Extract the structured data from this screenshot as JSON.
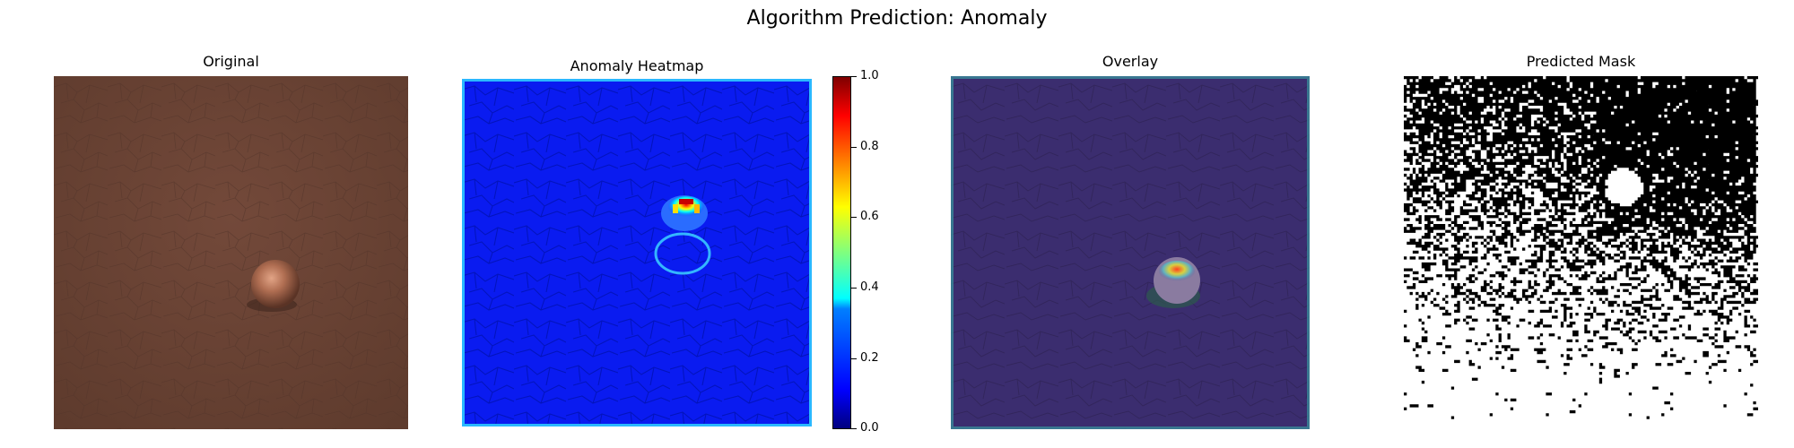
{
  "figure": {
    "title": "Algorithm Prediction: Anomaly"
  },
  "panels": {
    "original": {
      "title": "Original"
    },
    "heatmap": {
      "title": "Anomaly Heatmap"
    },
    "overlay": {
      "title": "Overlay"
    },
    "mask": {
      "title": "Predicted Mask"
    }
  },
  "colorbar": {
    "ticks": [
      "1.0",
      "0.8",
      "0.6",
      "0.4",
      "0.2",
      "0.0"
    ],
    "colormap": "jet",
    "range": [
      0.0,
      1.0
    ]
  },
  "colors": {
    "leather": "#6b4434",
    "heat_background": "#0a1bf0",
    "overlay_background": "#3b2d6f",
    "mask_black": "#000000",
    "mask_white": "#ffffff"
  }
}
